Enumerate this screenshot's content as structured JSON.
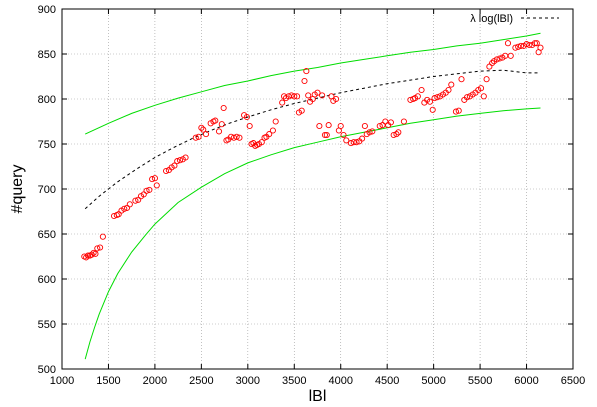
{
  "chart_data": {
    "type": "scatter",
    "xlabel": "lBl",
    "ylabel": "#query",
    "xlim": [
      1000,
      6500
    ],
    "ylim": [
      500,
      900
    ],
    "xticks": [
      1000,
      1500,
      2000,
      2500,
      3000,
      3500,
      4000,
      4500,
      5000,
      5500,
      6000,
      6500
    ],
    "yticks": [
      500,
      550,
      600,
      650,
      700,
      750,
      800,
      850,
      900
    ],
    "grid": true,
    "legend_position": "top-right",
    "colors": {
      "points": "#ff0000",
      "fit": "#000000",
      "bounds": "#00dd00",
      "grid": "#999999"
    },
    "series": [
      {
        "name": "",
        "kind": "points",
        "points": [
          [
            1240,
            625
          ],
          [
            1260,
            624
          ],
          [
            1280,
            626
          ],
          [
            1300,
            626
          ],
          [
            1320,
            627
          ],
          [
            1340,
            629
          ],
          [
            1360,
            628
          ],
          [
            1380,
            634
          ],
          [
            1410,
            635
          ],
          [
            1440,
            647
          ],
          [
            1560,
            670
          ],
          [
            1590,
            671
          ],
          [
            1610,
            672
          ],
          [
            1640,
            676
          ],
          [
            1670,
            678
          ],
          [
            1700,
            679
          ],
          [
            1730,
            683
          ],
          [
            1790,
            687
          ],
          [
            1820,
            688
          ],
          [
            1850,
            692
          ],
          [
            1880,
            694
          ],
          [
            1910,
            698
          ],
          [
            1940,
            699
          ],
          [
            1970,
            711
          ],
          [
            2000,
            712
          ],
          [
            2020,
            704
          ],
          [
            2120,
            720
          ],
          [
            2150,
            721
          ],
          [
            2180,
            724
          ],
          [
            2210,
            726
          ],
          [
            2240,
            731
          ],
          [
            2270,
            732
          ],
          [
            2300,
            733
          ],
          [
            2330,
            735
          ],
          [
            2440,
            757
          ],
          [
            2470,
            758
          ],
          [
            2500,
            768
          ],
          [
            2520,
            766
          ],
          [
            2550,
            761
          ],
          [
            2600,
            773
          ],
          [
            2630,
            775
          ],
          [
            2650,
            776
          ],
          [
            2690,
            764
          ],
          [
            2720,
            772
          ],
          [
            2740,
            790
          ],
          [
            2770,
            754
          ],
          [
            2790,
            755
          ],
          [
            2820,
            758
          ],
          [
            2850,
            757
          ],
          [
            2880,
            758
          ],
          [
            2910,
            757
          ],
          [
            2960,
            782
          ],
          [
            2990,
            780
          ],
          [
            3020,
            770
          ],
          [
            3040,
            750
          ],
          [
            3060,
            751
          ],
          [
            3080,
            748
          ],
          [
            3100,
            749
          ],
          [
            3120,
            750
          ],
          [
            3150,
            752
          ],
          [
            3180,
            757
          ],
          [
            3200,
            758
          ],
          [
            3230,
            761
          ],
          [
            3270,
            765
          ],
          [
            3300,
            775
          ],
          [
            3370,
            796
          ],
          [
            3390,
            803
          ],
          [
            3410,
            801
          ],
          [
            3440,
            803
          ],
          [
            3470,
            804
          ],
          [
            3500,
            803
          ],
          [
            3530,
            803
          ],
          [
            3550,
            785
          ],
          [
            3580,
            787
          ],
          [
            3610,
            820
          ],
          [
            3630,
            831
          ],
          [
            3650,
            804
          ],
          [
            3670,
            797
          ],
          [
            3700,
            800
          ],
          [
            3720,
            805
          ],
          [
            3750,
            807
          ],
          [
            3770,
            770
          ],
          [
            3800,
            804
          ],
          [
            3830,
            760
          ],
          [
            3850,
            760
          ],
          [
            3870,
            771
          ],
          [
            3900,
            803
          ],
          [
            3920,
            798
          ],
          [
            3950,
            800
          ],
          [
            3980,
            765
          ],
          [
            4000,
            770
          ],
          [
            4030,
            760
          ],
          [
            4060,
            754
          ],
          [
            4110,
            751
          ],
          [
            4140,
            752
          ],
          [
            4170,
            752
          ],
          [
            4200,
            753
          ],
          [
            4230,
            756
          ],
          [
            4260,
            770
          ],
          [
            4280,
            761
          ],
          [
            4310,
            763
          ],
          [
            4340,
            764
          ],
          [
            4420,
            770
          ],
          [
            4450,
            771
          ],
          [
            4480,
            775
          ],
          [
            4510,
            771
          ],
          [
            4540,
            774
          ],
          [
            4570,
            760
          ],
          [
            4600,
            761
          ],
          [
            4620,
            763
          ],
          [
            4680,
            775
          ],
          [
            4750,
            799
          ],
          [
            4780,
            800
          ],
          [
            4800,
            801
          ],
          [
            4830,
            803
          ],
          [
            4870,
            810
          ],
          [
            4900,
            796
          ],
          [
            4930,
            799
          ],
          [
            4960,
            797
          ],
          [
            4990,
            788
          ],
          [
            5010,
            801
          ],
          [
            5040,
            802
          ],
          [
            5070,
            803
          ],
          [
            5100,
            805
          ],
          [
            5130,
            807
          ],
          [
            5160,
            810
          ],
          [
            5190,
            816
          ],
          [
            5240,
            786
          ],
          [
            5270,
            787
          ],
          [
            5300,
            822
          ],
          [
            5330,
            799
          ],
          [
            5360,
            802
          ],
          [
            5390,
            803
          ],
          [
            5420,
            805
          ],
          [
            5450,
            807
          ],
          [
            5480,
            810
          ],
          [
            5510,
            812
          ],
          [
            5540,
            803
          ],
          [
            5570,
            822
          ],
          [
            5600,
            836
          ],
          [
            5630,
            840
          ],
          [
            5650,
            842
          ],
          [
            5680,
            844
          ],
          [
            5710,
            845
          ],
          [
            5740,
            846
          ],
          [
            5770,
            848
          ],
          [
            5800,
            862
          ],
          [
            5830,
            848
          ],
          [
            5880,
            857
          ],
          [
            5910,
            858
          ],
          [
            5940,
            859
          ],
          [
            5970,
            859
          ],
          [
            6000,
            861
          ],
          [
            6030,
            860
          ],
          [
            6060,
            860
          ],
          [
            6090,
            862
          ],
          [
            6110,
            862
          ],
          [
            6130,
            852
          ],
          [
            6150,
            857
          ]
        ]
      },
      {
        "name": "λ log(lBl)",
        "kind": "line-dashed",
        "points": [
          [
            1250,
            678
          ],
          [
            1400,
            692
          ],
          [
            1600,
            708
          ],
          [
            1800,
            722
          ],
          [
            2000,
            735
          ],
          [
            2200,
            746
          ],
          [
            2400,
            756
          ],
          [
            2600,
            765
          ],
          [
            2800,
            773
          ],
          [
            3000,
            780
          ],
          [
            3250,
            788
          ],
          [
            3500,
            795
          ],
          [
            3750,
            801
          ],
          [
            4000,
            807
          ],
          [
            4250,
            812
          ],
          [
            4500,
            817
          ],
          [
            4750,
            821
          ],
          [
            5000,
            825
          ],
          [
            5250,
            828
          ],
          [
            5500,
            831
          ],
          [
            5750,
            832
          ],
          [
            6000,
            829
          ],
          [
            6150,
            829
          ]
        ]
      },
      {
        "name": "",
        "kind": "line",
        "points": [
          [
            1250,
            761
          ],
          [
            1500,
            773
          ],
          [
            1750,
            784
          ],
          [
            2000,
            793
          ],
          [
            2250,
            801
          ],
          [
            2500,
            808
          ],
          [
            2750,
            815
          ],
          [
            3000,
            820
          ],
          [
            3250,
            826
          ],
          [
            3500,
            831
          ],
          [
            3750,
            835
          ],
          [
            4000,
            840
          ],
          [
            4250,
            844
          ],
          [
            4500,
            848
          ],
          [
            4750,
            852
          ],
          [
            5000,
            855
          ],
          [
            5250,
            859
          ],
          [
            5500,
            862
          ],
          [
            5750,
            866
          ],
          [
            6000,
            870
          ],
          [
            6150,
            873
          ]
        ]
      },
      {
        "name": "",
        "kind": "line",
        "points": [
          [
            1250,
            511
          ],
          [
            1300,
            530
          ],
          [
            1350,
            546
          ],
          [
            1400,
            561
          ],
          [
            1500,
            586
          ],
          [
            1600,
            606
          ],
          [
            1750,
            630
          ],
          [
            1900,
            649
          ],
          [
            2000,
            661
          ],
          [
            2250,
            685
          ],
          [
            2500,
            702
          ],
          [
            2750,
            717
          ],
          [
            3000,
            729
          ],
          [
            3250,
            738
          ],
          [
            3500,
            746
          ],
          [
            3750,
            752
          ],
          [
            4000,
            758
          ],
          [
            4250,
            763
          ],
          [
            4500,
            768
          ],
          [
            4750,
            773
          ],
          [
            5000,
            777
          ],
          [
            5250,
            781
          ],
          [
            5500,
            784
          ],
          [
            5750,
            787
          ],
          [
            6000,
            789
          ],
          [
            6150,
            790
          ]
        ]
      }
    ]
  }
}
